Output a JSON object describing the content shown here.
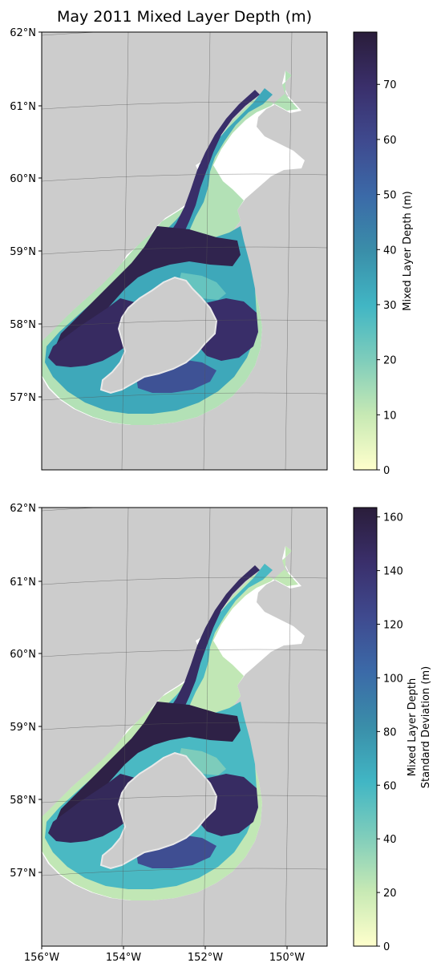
{
  "title": "May 2011 Mixed Layer Depth (m)",
  "panels": [
    {
      "colorbar": {
        "label_lines": [
          "Mixed Layer Depth (m)"
        ],
        "ticks": [
          "0",
          "10",
          "20",
          "30",
          "40",
          "50",
          "60",
          "70"
        ],
        "tick_values": [
          0,
          10,
          20,
          30,
          40,
          50,
          60,
          70
        ],
        "vmin": 0,
        "vmax": 79.5
      }
    },
    {
      "colorbar": {
        "label_lines": [
          "Mixed Layer Depth",
          "Standard Deviation (m)"
        ],
        "ticks": [
          "0",
          "20",
          "40",
          "60",
          "80",
          "100",
          "120",
          "140",
          "160"
        ],
        "tick_values": [
          0,
          20,
          40,
          60,
          80,
          100,
          120,
          140,
          160
        ],
        "vmin": 0,
        "vmax": 163.5
      }
    }
  ],
  "lat_labels": [
    "62°N",
    "61°N",
    "60°N",
    "59°N",
    "58°N",
    "57°N"
  ],
  "lon_labels": [
    "156°W",
    "154°W",
    "152°W",
    "150°W"
  ],
  "colormap": [
    "#ffffcc",
    "#c7e9b4",
    "#7fcdbb",
    "#41b6c4",
    "#3a8ea9",
    "#3b6aa8",
    "#3f4a8f",
    "#3a2f6b",
    "#2a1d3a"
  ],
  "colors": {
    "land": "#cccccc",
    "sea": "#ffffff",
    "island": "#e9e9e9",
    "grid": "#555555"
  }
}
